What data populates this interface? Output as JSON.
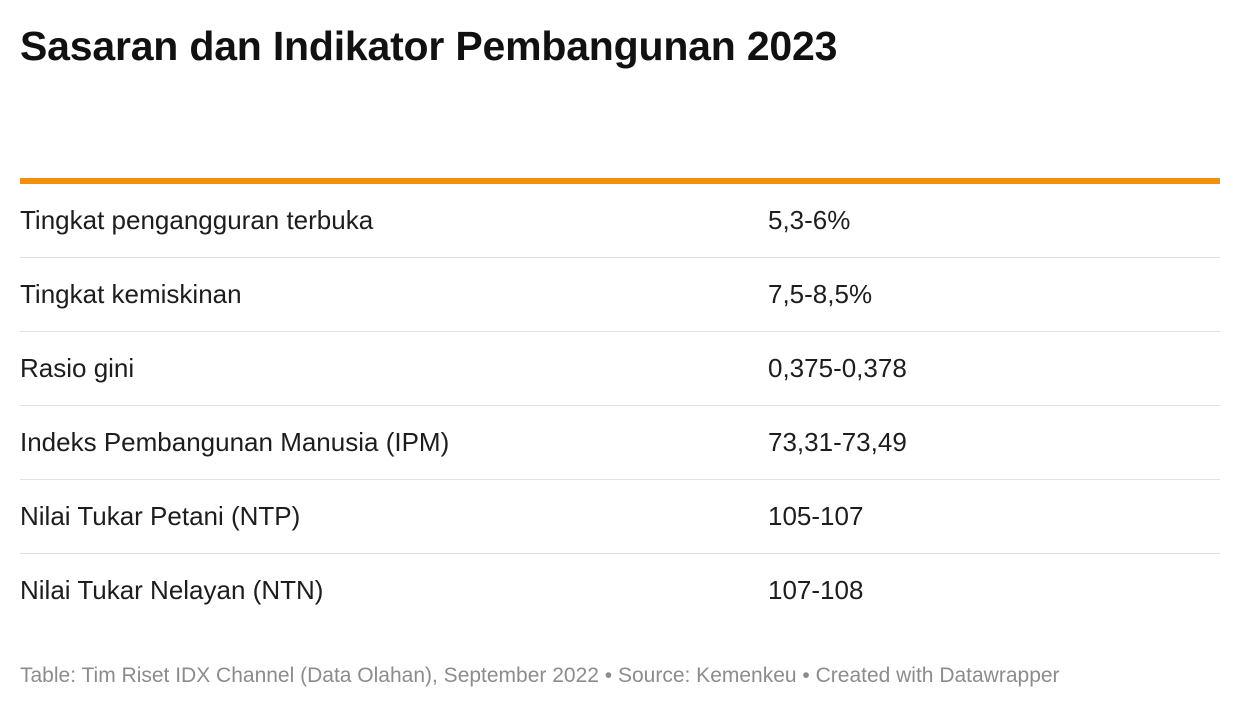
{
  "title": "Sasaran dan Indikator Pembangunan 2023",
  "chart_data": {
    "type": "table",
    "title": "Sasaran dan Indikator Pembangunan 2023",
    "columns": [
      "",
      ""
    ],
    "rows": [
      {
        "label": "Tingkat pengangguran terbuka",
        "value": "5,3-6%"
      },
      {
        "label": "Tingkat kemiskinan",
        "value": "7,5-8,5%"
      },
      {
        "label": "Rasio gini",
        "value": "0,375-0,378"
      },
      {
        "label": "Indeks Pembangunan Manusia (IPM)",
        "value": "73,31-73,49"
      },
      {
        "label": "Nilai Tukar Petani (NTP)",
        "value": "105-107"
      },
      {
        "label": "Nilai Tukar Nelayan (NTN)",
        "value": "107-108"
      }
    ],
    "header_rule_color": "#f0900e"
  },
  "footer": "Table: Tim Riset IDX Channel (Data Olahan), September 2022 • Source: Kemenkeu • Created with Datawrapper"
}
